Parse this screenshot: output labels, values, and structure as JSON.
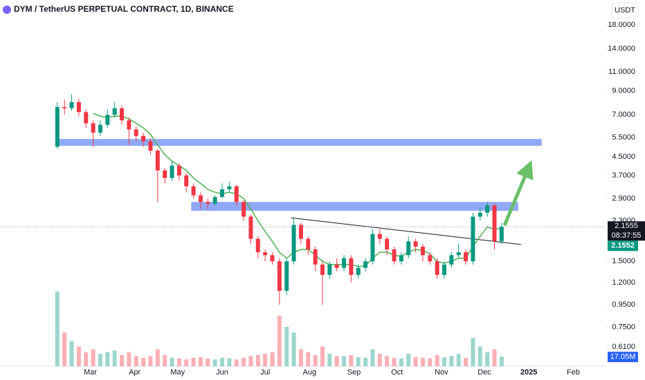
{
  "chart_data": {
    "type": "candlestick",
    "title": "DYM / TetherUS PERPETUAL CONTRACT, 1D, BINANCE",
    "currency": "USDT",
    "log_scale": true,
    "grid": false,
    "ylim": [
      0.498,
      23.4
    ],
    "yticks": [
      {
        "value": 18,
        "label": "18.0000"
      },
      {
        "value": 14,
        "label": "14.0000"
      },
      {
        "value": 11,
        "label": "11.0000"
      },
      {
        "value": 9,
        "label": "9.0000"
      },
      {
        "value": 7,
        "label": "7.0000"
      },
      {
        "value": 5.5,
        "label": "5.5000"
      },
      {
        "value": 4.5,
        "label": "4.5000"
      },
      {
        "value": 3.7,
        "label": "3.7000"
      },
      {
        "value": 2.9,
        "label": "2.9000"
      },
      {
        "value": 2.3,
        "label": "2.3000"
      },
      {
        "value": 1.5,
        "label": "1.5000"
      },
      {
        "value": 1.2,
        "label": "1.2000"
      },
      {
        "value": 0.95,
        "label": "0.9500"
      },
      {
        "value": 0.75,
        "label": "0.7500"
      },
      {
        "value": 0.61,
        "label": "0.6100"
      }
    ],
    "xlim": [
      -3,
      420
    ],
    "xticks": [
      {
        "value": 60,
        "label": "Mar"
      },
      {
        "value": 91,
        "label": "Apr"
      },
      {
        "value": 121,
        "label": "May"
      },
      {
        "value": 152,
        "label": "Jun"
      },
      {
        "value": 182,
        "label": "Jul"
      },
      {
        "value": 213,
        "label": "Aug"
      },
      {
        "value": 244,
        "label": "Sep"
      },
      {
        "value": 274,
        "label": "Oct"
      },
      {
        "value": 305,
        "label": "Nov"
      },
      {
        "value": 335,
        "label": "Dec"
      },
      {
        "value": 366,
        "label": "2025"
      },
      {
        "value": 397,
        "label": "Feb"
      }
    ],
    "up_color": "#089981",
    "down_color": "#f23645",
    "ma_color": "#4caf50",
    "x": [
      37,
      42,
      47,
      52,
      57,
      62,
      67,
      72,
      77,
      82,
      87,
      92,
      97,
      102,
      107,
      112,
      117,
      122,
      127,
      132,
      137,
      142,
      147,
      152,
      157,
      162,
      167,
      172,
      177,
      182,
      187,
      192,
      197,
      202,
      207,
      212,
      217,
      222,
      227,
      232,
      237,
      242,
      247,
      252,
      257,
      262,
      267,
      272,
      277,
      282,
      287,
      292,
      297,
      302,
      307,
      312,
      317,
      322,
      327,
      332,
      337,
      342,
      347
    ],
    "open": [
      5.0,
      7.6,
      7.5,
      8.0,
      7.2,
      6.4,
      5.8,
      6.3,
      7.0,
      7.5,
      6.6,
      6.0,
      5.6,
      5.3,
      4.8,
      3.9,
      3.6,
      4.1,
      3.7,
      3.3,
      3.0,
      2.8,
      2.75,
      2.95,
      3.2,
      3.3,
      2.8,
      2.4,
      1.9,
      1.65,
      1.6,
      1.5,
      1.1,
      1.5,
      2.2,
      1.9,
      1.7,
      1.45,
      1.3,
      1.45,
      1.4,
      1.55,
      1.3,
      1.4,
      1.5,
      2.0,
      1.9,
      1.7,
      1.5,
      1.6,
      1.85,
      1.75,
      1.6,
      1.5,
      1.3,
      1.45,
      1.6,
      1.65,
      1.5,
      2.4,
      2.5,
      2.7,
      1.85
    ],
    "high": [
      8.0,
      8.2,
      8.7,
      8.3,
      7.4,
      6.6,
      6.6,
      7.4,
      8.0,
      7.7,
      6.8,
      6.2,
      5.8,
      5.5,
      4.9,
      4.0,
      4.3,
      4.2,
      3.8,
      3.4,
      3.1,
      2.9,
      3.0,
      3.4,
      3.45,
      3.35,
      2.85,
      2.45,
      1.95,
      1.7,
      1.65,
      1.55,
      1.55,
      2.35,
      2.25,
      1.95,
      1.75,
      1.5,
      1.5,
      1.55,
      1.6,
      1.6,
      1.45,
      1.55,
      2.1,
      2.1,
      1.95,
      1.75,
      1.65,
      1.95,
      1.9,
      1.8,
      1.65,
      1.55,
      1.5,
      1.65,
      1.8,
      1.7,
      2.5,
      2.65,
      2.8,
      2.75,
      2.25
    ],
    "low": [
      4.9,
      7.0,
      7.3,
      6.9,
      6.1,
      5.0,
      5.6,
      6.1,
      6.8,
      6.3,
      5.1,
      5.3,
      5.0,
      4.6,
      2.8,
      3.4,
      3.5,
      3.5,
      3.1,
      2.9,
      2.6,
      2.6,
      2.7,
      2.9,
      3.1,
      2.7,
      2.3,
      1.8,
      1.55,
      1.5,
      1.45,
      0.95,
      1.05,
      1.45,
      1.8,
      1.6,
      1.35,
      0.95,
      1.25,
      1.35,
      1.35,
      1.2,
      1.25,
      1.35,
      1.45,
      1.8,
      1.6,
      1.45,
      1.45,
      1.55,
      1.65,
      1.5,
      1.45,
      1.25,
      1.25,
      1.4,
      1.55,
      1.45,
      1.45,
      2.3,
      2.4,
      1.7,
      1.8
    ],
    "close": [
      7.6,
      7.5,
      8.0,
      7.2,
      6.4,
      5.8,
      6.3,
      7.0,
      7.5,
      6.6,
      6.0,
      5.6,
      5.3,
      4.8,
      3.9,
      3.6,
      4.1,
      3.7,
      3.3,
      3.0,
      2.8,
      2.75,
      2.95,
      3.2,
      3.3,
      2.8,
      2.4,
      1.9,
      1.65,
      1.6,
      1.5,
      1.1,
      1.5,
      2.2,
      1.9,
      1.7,
      1.45,
      1.3,
      1.45,
      1.4,
      1.55,
      1.3,
      1.4,
      1.5,
      2.0,
      1.9,
      1.7,
      1.5,
      1.6,
      1.85,
      1.75,
      1.6,
      1.5,
      1.3,
      1.45,
      1.6,
      1.65,
      1.5,
      2.4,
      2.5,
      2.7,
      1.85,
      2.16
    ],
    "ma": [
      null,
      null,
      null,
      null,
      null,
      7.1,
      6.9,
      6.8,
      6.9,
      6.9,
      6.7,
      6.4,
      6.1,
      5.7,
      5.1,
      4.6,
      4.3,
      4.1,
      3.9,
      3.6,
      3.4,
      3.2,
      3.1,
      3.05,
      3.1,
      3.05,
      2.9,
      2.6,
      2.3,
      2.05,
      1.85,
      1.65,
      1.55,
      1.65,
      1.7,
      1.7,
      1.6,
      1.5,
      1.45,
      1.45,
      1.45,
      1.45,
      1.42,
      1.43,
      1.55,
      1.65,
      1.65,
      1.6,
      1.58,
      1.65,
      1.7,
      1.68,
      1.62,
      1.5,
      1.47,
      1.5,
      1.55,
      1.55,
      1.75,
      1.95,
      2.15,
      2.1,
      2.12
    ],
    "volume": {
      "vlim": [
        0,
        160
      ],
      "values": [
        133,
        60,
        45,
        35,
        25,
        30,
        22,
        25,
        28,
        20,
        25,
        18,
        15,
        18,
        30,
        20,
        15,
        14,
        12,
        15,
        16,
        14,
        12,
        15,
        14,
        12,
        15,
        18,
        20,
        22,
        25,
        90,
        70,
        60,
        30,
        25,
        20,
        35,
        22,
        18,
        18,
        20,
        16,
        15,
        30,
        22,
        18,
        15,
        14,
        22,
        16,
        15,
        14,
        20,
        16,
        18,
        22,
        15,
        50,
        35,
        25,
        30,
        17.05
      ],
      "last_label": "17.05M",
      "label_color": "#2962ff"
    },
    "last_price": {
      "value": 2.1555,
      "label": "2.1555"
    },
    "countdown": "08:37:55",
    "ma_last": {
      "value": 2.1552,
      "label": "2.1552"
    },
    "zones": [
      {
        "x": [
          35.7,
          375
        ],
        "y": [
          5.05,
          5.43
        ]
      },
      {
        "x": [
          130.4,
          358.6
        ],
        "y": [
          2.55,
          2.8
        ]
      }
    ],
    "zone_color": "#90a9f7",
    "trendline": {
      "x": [
        200,
        360.5
      ],
      "y": [
        2.37,
        1.79
      ]
    },
    "arrow": {
      "x": [
        349,
        368
      ],
      "y": [
        2.19,
        4.34
      ],
      "color": "#6abf69"
    }
  }
}
